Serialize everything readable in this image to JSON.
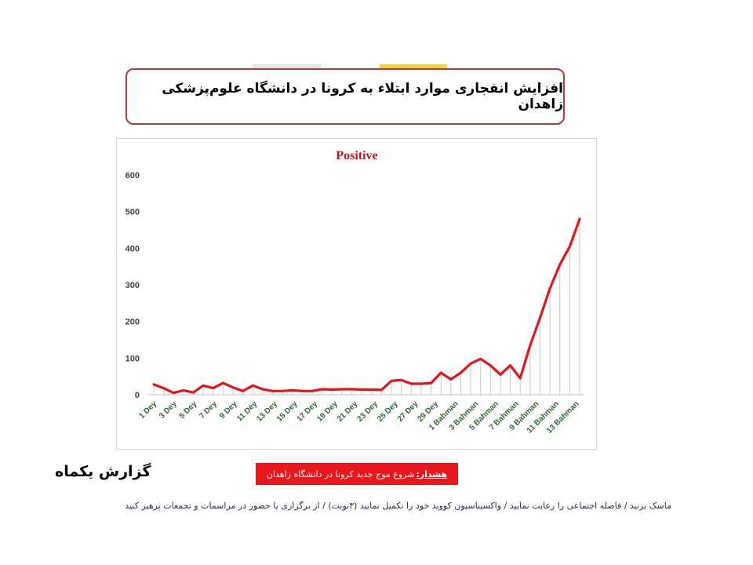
{
  "header": {
    "title": "افزایش انفجاری موارد ابتلاء به کرونا در دانشگاه علوم‌پزشکی زاهدان"
  },
  "chart_data": {
    "type": "area",
    "title": "Positive",
    "xlabel": "",
    "ylabel": "",
    "ylim": [
      0,
      600
    ],
    "yticks": [
      "0",
      "100",
      "200",
      "300",
      "400",
      "500",
      "600"
    ],
    "grid": false,
    "legend": "none",
    "x_tick_labels": [
      "1 Dey",
      "3 Dey",
      "5 Dey",
      "7 Dey",
      "9 Dey",
      "11 Dey",
      "13 Dey",
      "15 Dey",
      "17 Dey",
      "19 Dey",
      "21 Dey",
      "23 Dey",
      "25 Dey",
      "27 Dey",
      "29 Dey",
      "1 Bahman",
      "3 Bahman",
      "5 Bahman",
      "7 Bahman",
      "9 Bahman",
      "11 Bahman",
      "13 Bahman"
    ],
    "series": [
      {
        "name": "Positive",
        "color": "#e3151a",
        "fill_color": "#c9c9c9",
        "values": [
          28,
          18,
          5,
          12,
          6,
          25,
          18,
          32,
          20,
          10,
          25,
          15,
          10,
          10,
          12,
          10,
          10,
          15,
          14,
          15,
          15,
          14,
          14,
          13,
          38,
          40,
          30,
          30,
          32,
          60,
          42,
          60,
          85,
          98,
          80,
          55,
          80,
          45,
          135,
          210,
          290,
          355,
          405,
          480
        ]
      }
    ]
  },
  "footer": {
    "report_label": "گزارش یکماه",
    "warning_label": "هشدار:",
    "warning_text": "شروع موج جدید کرونا در دانشگاه زاهدان",
    "advice": "ماسک بزنید / فاصله اجتماعی را رعایت نمایید / واکسیناسیون کووید خود را تکمیل نمایید (۳نوبت) / از برگزاری یا حضور در مراسمات و تجمعات پرهیز کنید"
  }
}
